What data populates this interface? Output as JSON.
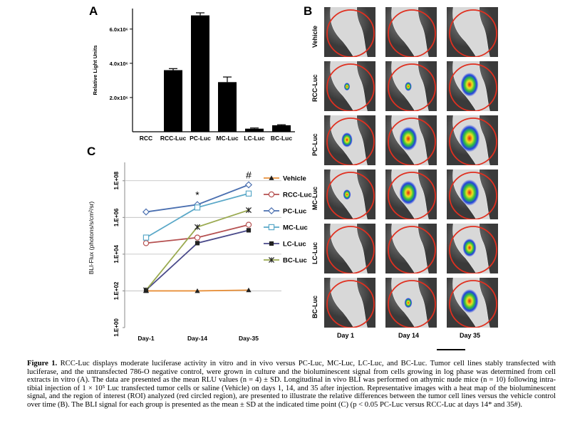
{
  "panels": {
    "a": "A",
    "b": "B",
    "c": "C"
  },
  "chart_data": [
    {
      "type": "bar",
      "panel": "A",
      "categories": [
        "RCC",
        "RCC-Luc",
        "PC-Luc",
        "MC-Luc",
        "LC-Luc",
        "BC-Luc"
      ],
      "values": [
        0,
        3600000,
        6800000,
        2900000,
        180000,
        380000
      ],
      "errors": [
        0,
        90000,
        150000,
        300000,
        40000,
        30000
      ],
      "ylabel": "Relative Light Units",
      "ylim": [
        0,
        7200000
      ],
      "yticks": [
        2000000,
        4000000,
        6000000
      ],
      "ytick_labels": [
        "2.0x10⁶",
        "4.0x10⁶",
        "6.0x10⁶"
      ],
      "bar_color": "#000000"
    },
    {
      "type": "line",
      "panel": "C",
      "categories": [
        "Day-1",
        "Day-14",
        "Day-35"
      ],
      "ylabel": "BLI-Flux (photons/s/cm²/sr)",
      "y_scale": "log",
      "ylim": [
        1,
        1000000000
      ],
      "yticks": [
        1,
        100,
        10000,
        1000000,
        100000000
      ],
      "ytick_labels": [
        "1.E+00",
        "1.E+02",
        "1.E+04",
        "1.E+06",
        "1.E+08"
      ],
      "grid": true,
      "legend_position": "right",
      "annotations": [
        {
          "text": "*",
          "category": "Day-14"
        },
        {
          "text": "#",
          "category": "Day-35"
        }
      ],
      "series": [
        {
          "name": "Vehicle",
          "values": [
            100,
            100,
            110
          ],
          "color": "#e8903a",
          "marker": "triangle"
        },
        {
          "name": "RCC-Luc",
          "values": [
            40000,
            80000,
            400000
          ],
          "color": "#b55050",
          "marker": "circle-open"
        },
        {
          "name": "PC-Luc",
          "values": [
            2000000,
            5000000,
            60000000
          ],
          "color": "#4a6fb0",
          "marker": "diamond-open"
        },
        {
          "name": "MC-Luc",
          "values": [
            80000,
            3500000,
            20000000
          ],
          "color": "#5aa8c8",
          "marker": "square-open"
        },
        {
          "name": "LC-Luc",
          "values": [
            110,
            40000,
            200000
          ],
          "color": "#4a4a8a",
          "marker": "square-filled"
        },
        {
          "name": "BC-Luc",
          "values": [
            110,
            300000,
            2500000
          ],
          "color": "#9aaa50",
          "marker": "star"
        }
      ]
    }
  ],
  "panel_b": {
    "rows": [
      "Vehicle",
      "RCC-Luc",
      "PC-Luc",
      "MC-Luc",
      "LC-Luc",
      "BC-Luc"
    ],
    "columns": [
      "Day 1",
      "Day 14",
      "Day 35"
    ],
    "signal_levels": [
      [
        0,
        0,
        0
      ],
      [
        0.1,
        0.15,
        0.8
      ],
      [
        0.4,
        0.8,
        0.95
      ],
      [
        0.2,
        0.8,
        0.9
      ],
      [
        0,
        0,
        0.55
      ],
      [
        0,
        0.2,
        0.8
      ]
    ],
    "roi_color": "#e03020"
  },
  "caption": {
    "label": "Figure 1.",
    "text": "RCC-Luc displays moderate luciferase activity in vitro and in vivo versus PC-Luc, MC-Luc, LC-Luc, and BC-Luc. Tumor cell lines stably transfected with luciferase, and the untransfected 786-O negative control, were grown in culture and the bioluminescent signal from cells growing in log phase was determined from cell extracts in vitro (A). The data are presented as the mean RLU values (n = 4) ± SD. Longitudinal in vivo BLI was performed on athymic nude mice (n = 10) following intra-tibial injection of 1 × 10⁵ Luc transfected tumor cells or saline (Vehicle) on days 1, 14, and 35 after injection. Representative images with a heat map of the bioluminescent signal, and the region of interest (ROI) analyzed (red circled region), are presented to illustrate the relative differences between the tumor cell lines versus the vehicle control over time (B). The BLI signal for each group is presented as the mean ± SD at the indicated time point (C) (p < 0.05 PC-Luc versus RCC-Luc at days 14* and 35#)."
  }
}
